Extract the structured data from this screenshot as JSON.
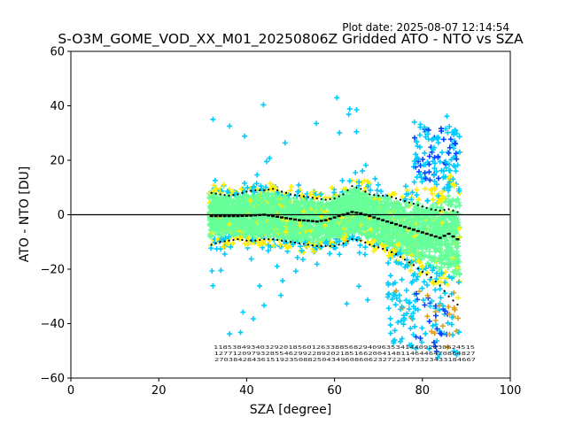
{
  "chart_data": {
    "type": "scatter",
    "title": "S-O3M_GOME_VOD_XX_M01_20250806Z Gridded ATO - NTO vs SZA",
    "plot_date": "Plot date: 2025-08-07 12:14:54",
    "xlabel": "SZA [degree]",
    "ylabel": "ATO - NTO [DU]",
    "xlim": [
      0,
      100
    ],
    "ylim": [
      -60,
      60
    ],
    "xticks": [
      0,
      20,
      40,
      60,
      80,
      100
    ],
    "yticks": [
      -60,
      -40,
      -20,
      0,
      20,
      40,
      60
    ],
    "grid": false,
    "marker": "+",
    "colors": {
      "density_low": "#66ff99",
      "density_mid": "#ffee00",
      "density_high": "#00ccff",
      "density_peak": "#0044ff",
      "density_warm": "#e0a020",
      "zero_line": "#000000",
      "median": "#000000"
    },
    "zero_line": 0,
    "series": [
      {
        "x": [
          32,
          34,
          36,
          38,
          40,
          42,
          44,
          46,
          48,
          50,
          52,
          54,
          56,
          58,
          60,
          62,
          64,
          66,
          68,
          70,
          72,
          74,
          76,
          78,
          80,
          82,
          84,
          86,
          88
        ],
        "values": [
          -0.5,
          -0.5,
          -0.5,
          -0.5,
          -0.4,
          -0.2,
          0,
          -0.5,
          -1,
          -1.5,
          -2,
          -2.2,
          -2.5,
          -2,
          -1,
          0,
          1,
          0.5,
          -0.5,
          -1.5,
          -2.5,
          -3.5,
          -4.5,
          -5.5,
          -6.5,
          -7.5,
          -8.5,
          -7,
          -9
        ]
      },
      {
        "x": [
          32,
          34,
          36,
          38,
          40,
          42,
          44,
          46,
          48,
          50,
          52,
          54,
          56,
          58,
          60,
          62,
          64,
          66,
          68,
          70,
          72,
          74,
          76,
          78,
          80,
          82,
          84,
          86,
          88
        ],
        "values": [
          8,
          7.5,
          7,
          7.5,
          8.5,
          9,
          9,
          9.5,
          8.5,
          7.5,
          7,
          6.5,
          6,
          5.5,
          6,
          7.5,
          10.5,
          9.5,
          7.5,
          7,
          7,
          6,
          5,
          4,
          3,
          2,
          1.5,
          2,
          1
        ]
      },
      {
        "x": [
          32,
          34,
          36,
          38,
          40,
          42,
          44,
          46,
          48,
          50,
          52,
          54,
          56,
          58,
          60,
          62,
          64,
          66,
          68,
          70,
          72,
          74,
          76,
          78,
          80,
          82,
          84,
          86,
          88
        ],
        "values": [
          -11,
          -10,
          -9.5,
          -9,
          -9.5,
          -9.5,
          -9,
          -9,
          -9.5,
          -10,
          -10.5,
          -11,
          -11.5,
          -11.5,
          -11.5,
          -10.5,
          -9,
          -9.5,
          -11,
          -12,
          -13,
          -14.5,
          -16.5,
          -18.5,
          -21,
          -23,
          -26,
          -30,
          -33
        ]
      }
    ]
  }
}
